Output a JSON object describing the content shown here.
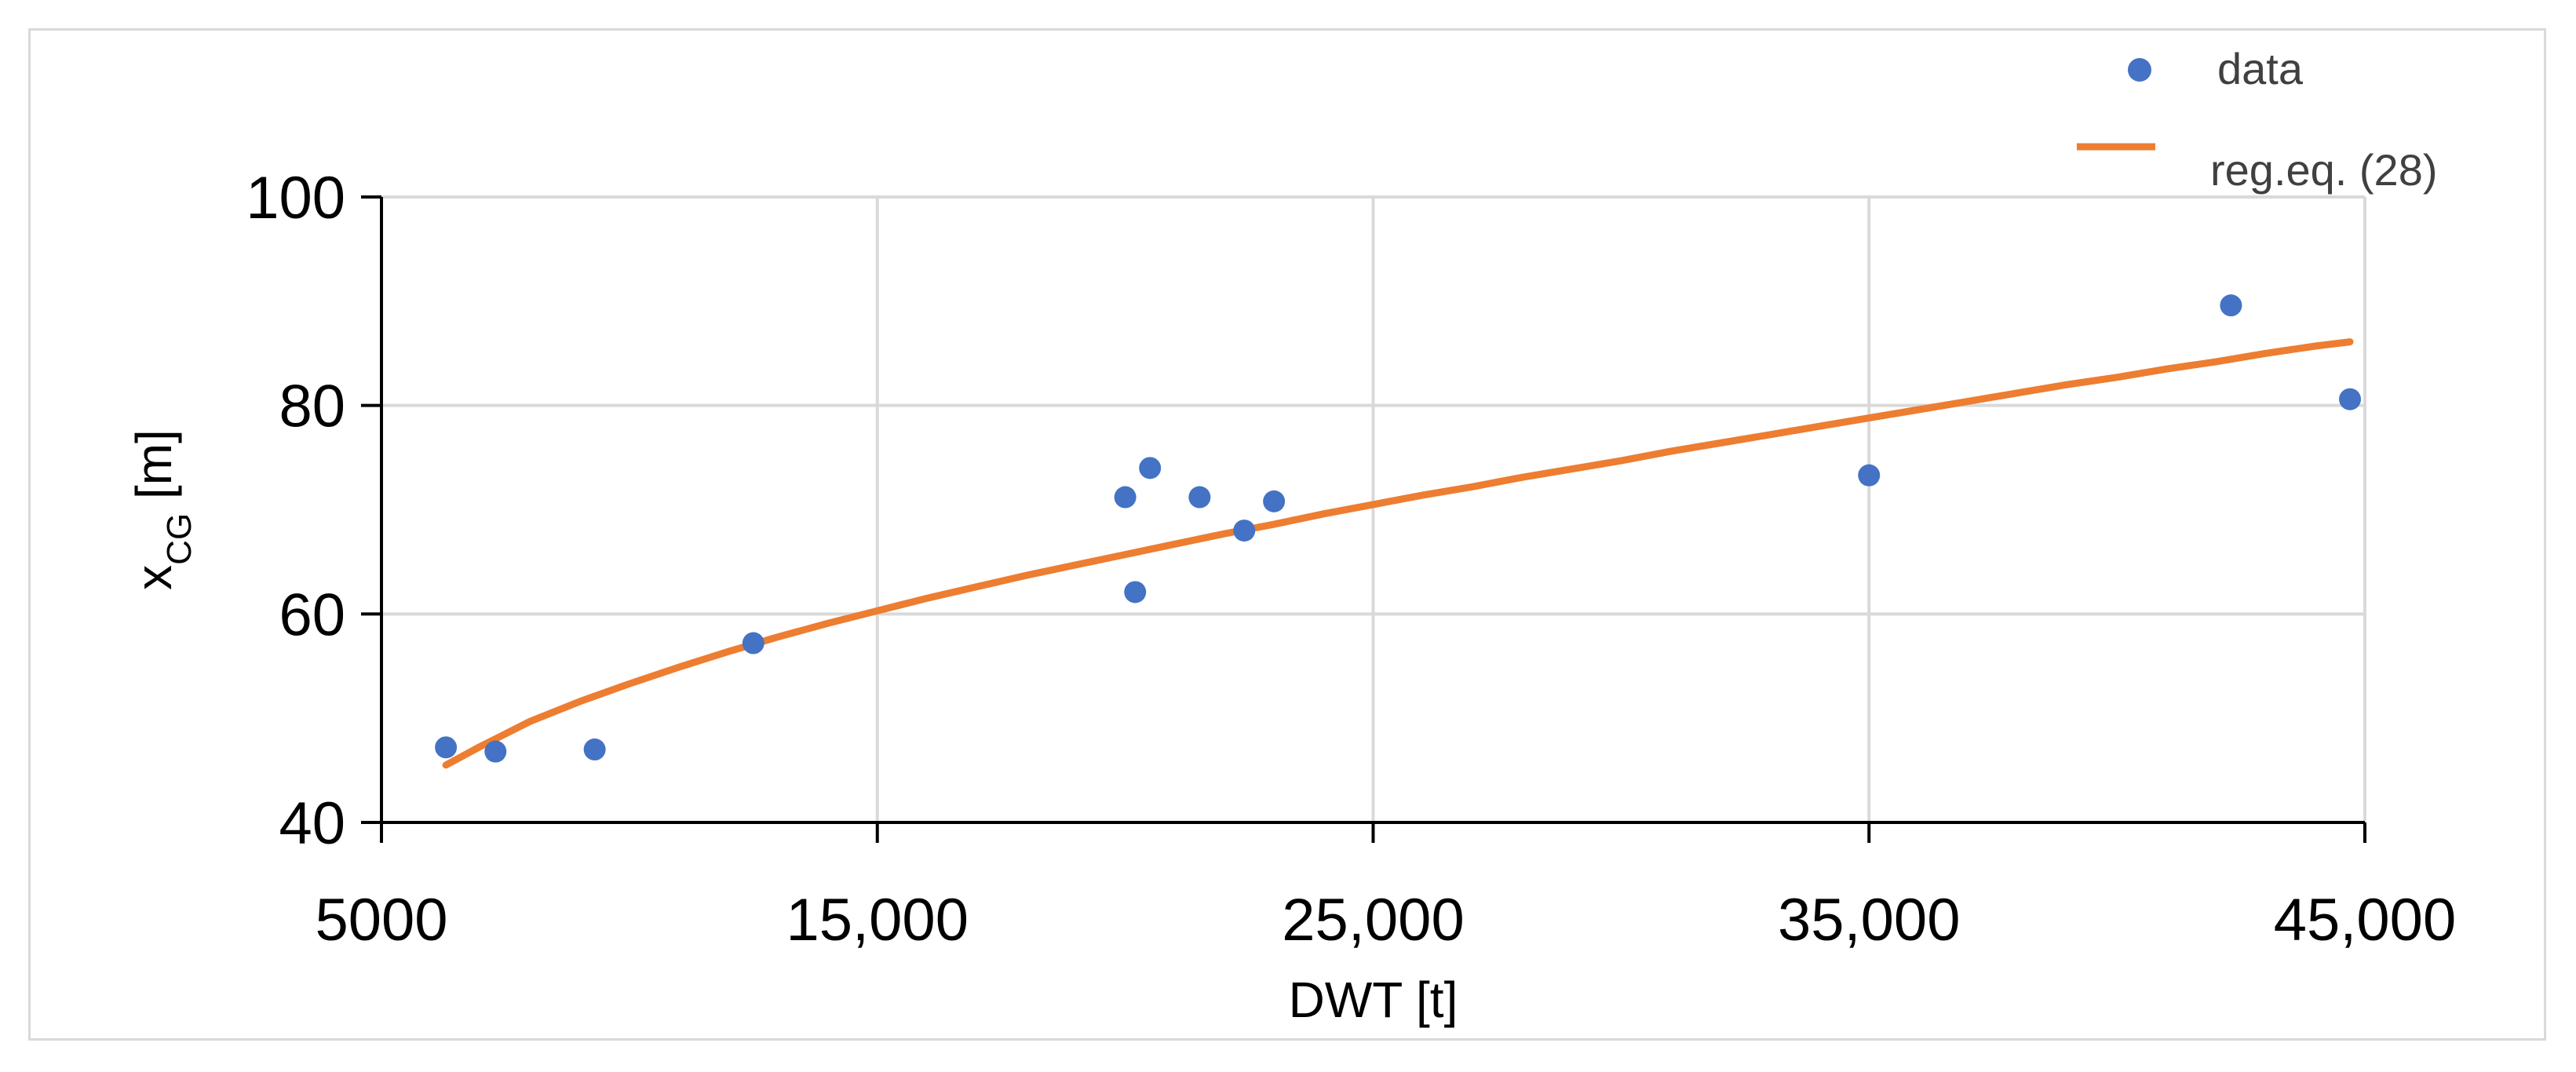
{
  "chart_data": {
    "type": "scatter",
    "xlabel": "DWT [t]",
    "ylabel": {
      "main": "x",
      "sub": "CG",
      "suffix": " [m]"
    },
    "xlim": [
      5000,
      45000
    ],
    "ylim": [
      40,
      100
    ],
    "xticks": [
      5000,
      15000,
      25000,
      35000,
      45000
    ],
    "xtick_labels": [
      "5000",
      "15,000",
      "25,000",
      "35,000",
      "45,000"
    ],
    "yticks": [
      40,
      60,
      80,
      100
    ],
    "ytick_labels": [
      "40",
      "60",
      "80",
      "100"
    ],
    "grid": true,
    "legend_position": "top-right",
    "series": [
      {
        "name": "data",
        "kind": "scatter",
        "color": "#4472c4",
        "points": [
          [
            6300,
            47.2
          ],
          [
            7300,
            46.8
          ],
          [
            9300,
            47.0
          ],
          [
            12500,
            57.2
          ],
          [
            20000,
            71.2
          ],
          [
            20200,
            62.1
          ],
          [
            20500,
            74.0
          ],
          [
            21500,
            71.2
          ],
          [
            22400,
            68.0
          ],
          [
            23000,
            70.8
          ],
          [
            35000,
            73.3
          ],
          [
            42300,
            89.6
          ],
          [
            44700,
            80.6
          ]
        ]
      },
      {
        "name": "reg.eq. (28)",
        "kind": "line",
        "color": "#ed7d31",
        "points": [
          [
            6300,
            45.5
          ],
          [
            7000,
            47.3
          ],
          [
            8000,
            49.7
          ],
          [
            9000,
            51.6
          ],
          [
            10000,
            53.3
          ],
          [
            11000,
            54.9
          ],
          [
            12000,
            56.4
          ],
          [
            13000,
            57.8
          ],
          [
            14000,
            59.1
          ],
          [
            15000,
            60.3
          ],
          [
            16000,
            61.5
          ],
          [
            17000,
            62.6
          ],
          [
            18000,
            63.7
          ],
          [
            19000,
            64.7
          ],
          [
            20000,
            65.7
          ],
          [
            21000,
            66.7
          ],
          [
            22000,
            67.7
          ],
          [
            23000,
            68.6
          ],
          [
            24000,
            69.6
          ],
          [
            25000,
            70.5
          ],
          [
            26000,
            71.4
          ],
          [
            27000,
            72.2
          ],
          [
            28000,
            73.1
          ],
          [
            29000,
            73.9
          ],
          [
            30000,
            74.7
          ],
          [
            31000,
            75.6
          ],
          [
            32000,
            76.4
          ],
          [
            33000,
            77.2
          ],
          [
            34000,
            78.0
          ],
          [
            35000,
            78.8
          ],
          [
            36000,
            79.6
          ],
          [
            37000,
            80.4
          ],
          [
            38000,
            81.2
          ],
          [
            39000,
            82.0
          ],
          [
            40000,
            82.7
          ],
          [
            41000,
            83.5
          ],
          [
            42000,
            84.2
          ],
          [
            43000,
            85.0
          ],
          [
            44000,
            85.7
          ],
          [
            44700,
            86.1
          ]
        ]
      }
    ]
  }
}
